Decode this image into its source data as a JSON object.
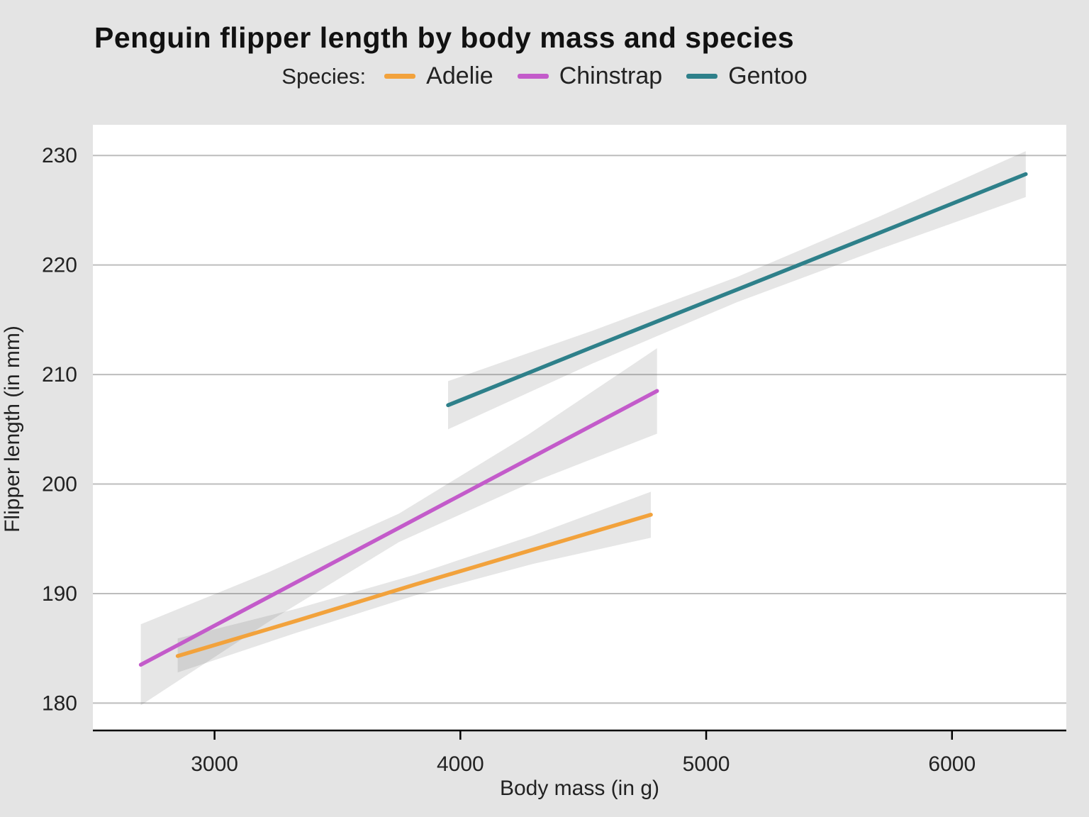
{
  "chart_data": {
    "type": "line",
    "title": "Penguin flipper length by body mass and species",
    "legend_title": "Species:",
    "xlabel": "Body mass (in g)",
    "ylabel": "Flipper length (in mm)",
    "x_ticks": [
      3000,
      4000,
      5000,
      6000
    ],
    "y_ticks": [
      180,
      190,
      200,
      210,
      220,
      230
    ],
    "xlim": [
      2505,
      6465
    ],
    "ylim": [
      177.5,
      232.8
    ],
    "grid": "horizontal",
    "legend_position": "top-center",
    "page_bg": "#e4e4e4",
    "panel_bg": "#ffffff",
    "grid_color": "#bdbdbd",
    "axis_color": "#000000",
    "tick_label_color": "#222222",
    "band_color": "rgba(100,100,100,0.16)",
    "series": [
      {
        "name": "Adelie",
        "color": "#F2A23C",
        "x": [
          2850,
          3331,
          3812,
          4294,
          4775
        ],
        "y": [
          184.3,
          187.5,
          190.8,
          194.0,
          197.2
        ],
        "band_lower": [
          182.8,
          186.4,
          189.8,
          192.7,
          195.1
        ],
        "band_upper": [
          185.9,
          188.6,
          191.7,
          195.3,
          199.3
        ]
      },
      {
        "name": "Chinstrap",
        "color": "#C35BCA",
        "x": [
          2700,
          3225,
          3750,
          4275,
          4800
        ],
        "y": [
          183.5,
          189.75,
          196.0,
          202.25,
          208.5
        ],
        "band_lower": [
          179.8,
          187.5,
          194.7,
          200.0,
          204.6
        ],
        "band_upper": [
          187.2,
          192.0,
          197.3,
          204.5,
          212.4
        ]
      },
      {
        "name": "Gentoo",
        "color": "#2E808A",
        "x": [
          3950,
          4537,
          5125,
          5712,
          6300
        ],
        "y": [
          207.2,
          212.5,
          217.75,
          223.0,
          228.3
        ],
        "band_lower": [
          205.0,
          211.0,
          216.6,
          221.5,
          226.2
        ],
        "band_upper": [
          209.4,
          214.0,
          218.9,
          224.5,
          230.4
        ]
      }
    ]
  }
}
